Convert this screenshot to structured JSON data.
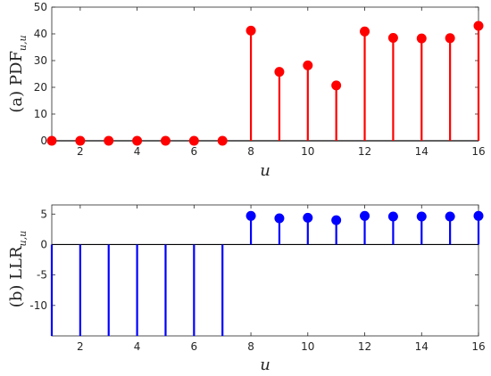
{
  "chart_data": [
    {
      "type": "stem",
      "ylabel_prefix": "(a) PDF",
      "ylabel_sub": "u,u",
      "xlabel": "u",
      "xlim": [
        1,
        16
      ],
      "ylim": [
        0,
        50
      ],
      "xticks": [
        "2",
        "4",
        "6",
        "8",
        "10",
        "12",
        "14",
        "16"
      ],
      "yticks": [
        "0",
        "10",
        "20",
        "30",
        "40",
        "50"
      ],
      "color": "#ff0000",
      "series": [
        {
          "x": [
            1,
            2,
            3,
            4,
            5,
            6,
            7,
            8,
            9,
            10,
            11,
            12,
            13,
            14,
            15,
            16
          ],
          "values": [
            0,
            0,
            0,
            0,
            0,
            0,
            0,
            41.2,
            25.8,
            28.2,
            20.7,
            40.9,
            38.5,
            38.3,
            38.4,
            43.0
          ]
        }
      ]
    },
    {
      "type": "stem",
      "ylabel_prefix": "(b) LLR",
      "ylabel_sub": "u,u",
      "xlabel": "u",
      "xlim": [
        1,
        16
      ],
      "ylim": [
        -15,
        6.5
      ],
      "xticks": [
        "2",
        "4",
        "6",
        "8",
        "10",
        "12",
        "14",
        "16"
      ],
      "yticks": [
        "-10",
        "-5",
        "0",
        "5"
      ],
      "color": "#0000ff",
      "series": [
        {
          "x": [
            1,
            2,
            3,
            4,
            5,
            6,
            7,
            8,
            9,
            10,
            11,
            12,
            13,
            14,
            15,
            16
          ],
          "values": [
            -15,
            -15,
            -15,
            -15,
            -15,
            -15,
            -15,
            4.7,
            4.3,
            4.4,
            4.0,
            4.7,
            4.6,
            4.6,
            4.6,
            4.7
          ]
        }
      ]
    }
  ]
}
